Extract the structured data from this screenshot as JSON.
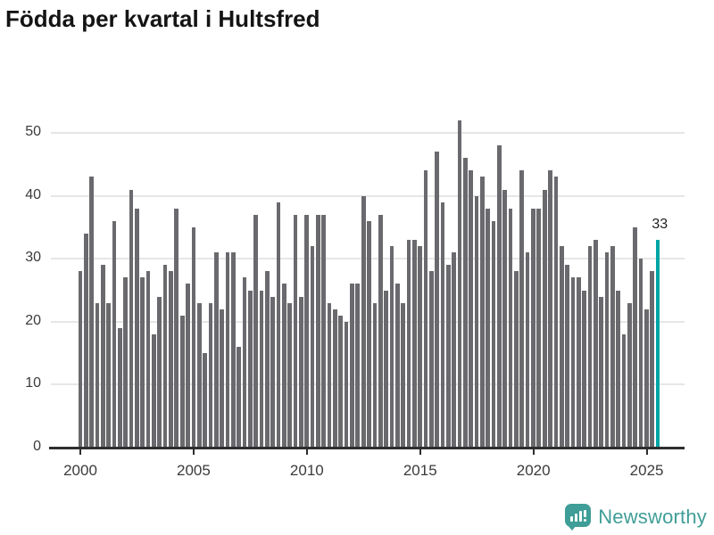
{
  "title": "Födda per kvartal i Hultsfred",
  "highlight_label": "33",
  "chart_data": {
    "type": "bar",
    "title": "Födda per kvartal i Hultsfred",
    "unit": "födda per kvartal",
    "start_period": "2000 Q1",
    "end_period": "2025 Q3",
    "x_tick_labels": [
      "2000",
      "2005",
      "2010",
      "2015",
      "2020",
      "2025"
    ],
    "y_tick_labels": [
      "0",
      "10",
      "20",
      "30",
      "40",
      "50"
    ],
    "y_ticks": [
      0,
      10,
      20,
      30,
      40,
      50
    ],
    "ylim": [
      0,
      52
    ],
    "grid": true,
    "legend": false,
    "bar_color": "#6a6a6e",
    "highlight_color": "#00a5a5",
    "highlight_index": 102,
    "highlight_value": 33,
    "values": [
      28,
      34,
      43,
      23,
      29,
      23,
      36,
      19,
      27,
      41,
      38,
      27,
      28,
      18,
      24,
      29,
      28,
      38,
      21,
      26,
      35,
      23,
      15,
      23,
      31,
      22,
      31,
      31,
      16,
      27,
      25,
      37,
      25,
      28,
      24,
      39,
      26,
      23,
      37,
      24,
      37,
      32,
      37,
      37,
      23,
      22,
      21,
      20,
      26,
      26,
      40,
      36,
      23,
      37,
      25,
      32,
      26,
      23,
      33,
      33,
      32,
      44,
      28,
      47,
      39,
      29,
      31,
      52,
      46,
      44,
      40,
      43,
      38,
      36,
      48,
      41,
      38,
      28,
      44,
      31,
      38,
      38,
      41,
      44,
      43,
      32,
      29,
      27,
      27,
      25,
      32,
      33,
      24,
      31,
      32,
      25,
      18,
      23,
      35,
      30,
      22,
      28,
      33
    ]
  },
  "branding": {
    "logo_text": "Newsworthy",
    "logo_color": "#3f9e97",
    "logo_icon": "bar-chart-speech-bubble-icon"
  }
}
